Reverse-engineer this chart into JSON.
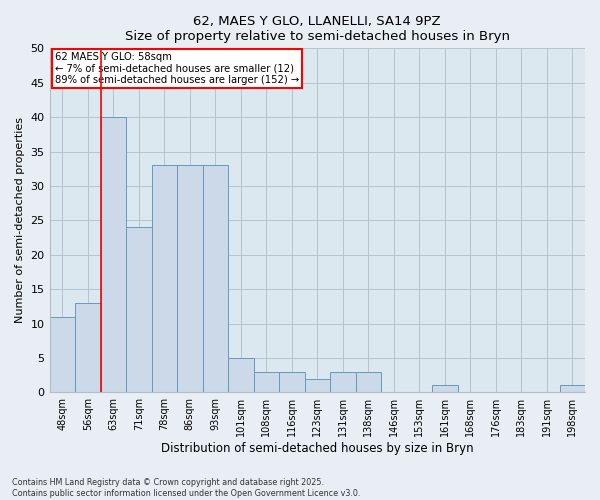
{
  "title": "62, MAES Y GLO, LLANELLI, SA14 9PZ",
  "subtitle": "Size of property relative to semi-detached houses in Bryn",
  "xlabel": "Distribution of semi-detached houses by size in Bryn",
  "ylabel": "Number of semi-detached properties",
  "categories": [
    "48sqm",
    "56sqm",
    "63sqm",
    "71sqm",
    "78sqm",
    "86sqm",
    "93sqm",
    "101sqm",
    "108sqm",
    "116sqm",
    "123sqm",
    "131sqm",
    "138sqm",
    "146sqm",
    "153sqm",
    "161sqm",
    "168sqm",
    "176sqm",
    "183sqm",
    "191sqm",
    "198sqm"
  ],
  "values": [
    11,
    13,
    40,
    24,
    33,
    33,
    33,
    5,
    3,
    3,
    2,
    3,
    3,
    0,
    0,
    1,
    0,
    0,
    0,
    0,
    1
  ],
  "bar_color": "#ccd9e8",
  "bar_edge_color": "#6699bb",
  "redline_x": 1.5,
  "annotation_title": "62 MAES Y GLO: 58sqm",
  "annotation_line1": "← 7% of semi-detached houses are smaller (12)",
  "annotation_line2": "89% of semi-detached houses are larger (152) →",
  "ylim": [
    0,
    50
  ],
  "yticks": [
    0,
    5,
    10,
    15,
    20,
    25,
    30,
    35,
    40,
    45,
    50
  ],
  "footer1": "Contains HM Land Registry data © Crown copyright and database right 2025.",
  "footer2": "Contains public sector information licensed under the Open Government Licence v3.0.",
  "bg_color": "#e8eef4",
  "plot_bg_color": "#dce8f0"
}
